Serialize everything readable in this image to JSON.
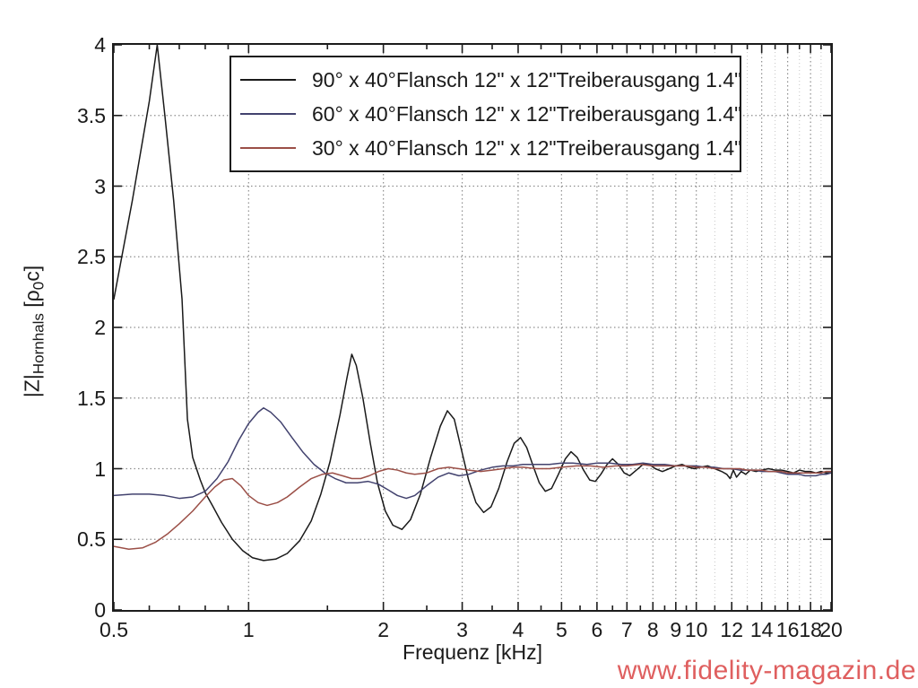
{
  "chart_data": {
    "type": "line",
    "x_scale": "log",
    "xlim": [
      0.5,
      20
    ],
    "ylim": [
      0,
      4
    ],
    "grid": "dotted",
    "legend_position": "top-center-inside",
    "xlabel": "Frequenz [kHz]",
    "ylabel": "|Z|Hornhals [p0c]",
    "x_tick_labels": [
      {
        "value": 0.5,
        "label": "0.5"
      },
      {
        "value": 1,
        "label": "1"
      },
      {
        "value": 2,
        "label": "2"
      },
      {
        "value": 3,
        "label": "3"
      },
      {
        "value": 4,
        "label": "4"
      },
      {
        "value": 5,
        "label": "5"
      },
      {
        "value": 6,
        "label": "6"
      },
      {
        "value": 7,
        "label": "7"
      },
      {
        "value": 8,
        "label": "8"
      },
      {
        "value": 9,
        "label": "9"
      },
      {
        "value": 10,
        "label": "10"
      },
      {
        "value": 12,
        "label": "12"
      },
      {
        "value": 14,
        "label": "14"
      },
      {
        "value": 16,
        "label": "16"
      },
      {
        "value": 18,
        "label": "18"
      },
      {
        "value": 20,
        "label": "20"
      }
    ],
    "x_minor_ticks": [
      0.6,
      0.7,
      0.8,
      0.9,
      1.5,
      2.5,
      3.5,
      4.5,
      5.5,
      6.5,
      7.5,
      8.5,
      9.5,
      11,
      13,
      15,
      17,
      19
    ],
    "x_minor_gridlines": [
      11,
      13,
      15,
      17,
      19
    ],
    "y_ticks": [
      {
        "value": 0,
        "label": "0"
      },
      {
        "value": 0.5,
        "label": "0.5"
      },
      {
        "value": 1,
        "label": "1"
      },
      {
        "value": 1.5,
        "label": "1.5"
      },
      {
        "value": 2,
        "label": "2"
      },
      {
        "value": 2.5,
        "label": "2.5"
      },
      {
        "value": 3,
        "label": "3"
      },
      {
        "value": 3.5,
        "label": "3.5"
      },
      {
        "value": 4,
        "label": "4"
      }
    ],
    "series": [
      {
        "name": "90° x 40°  Flansch 12\" x 12\"  Treiberausgang 1.4\"",
        "color": "#1a1a1a",
        "points": [
          [
            0.5,
            2.2
          ],
          [
            0.55,
            2.9
          ],
          [
            0.6,
            3.6
          ],
          [
            0.625,
            4.0
          ],
          [
            0.65,
            3.5
          ],
          [
            0.68,
            2.9
          ],
          [
            0.71,
            2.2
          ],
          [
            0.73,
            1.35
          ],
          [
            0.75,
            1.08
          ],
          [
            0.78,
            0.92
          ],
          [
            0.8,
            0.83
          ],
          [
            0.83,
            0.74
          ],
          [
            0.87,
            0.62
          ],
          [
            0.92,
            0.5
          ],
          [
            0.97,
            0.42
          ],
          [
            1.02,
            0.37
          ],
          [
            1.08,
            0.35
          ],
          [
            1.15,
            0.36
          ],
          [
            1.22,
            0.4
          ],
          [
            1.3,
            0.49
          ],
          [
            1.38,
            0.63
          ],
          [
            1.45,
            0.82
          ],
          [
            1.52,
            1.05
          ],
          [
            1.6,
            1.38
          ],
          [
            1.66,
            1.65
          ],
          [
            1.7,
            1.81
          ],
          [
            1.74,
            1.73
          ],
          [
            1.8,
            1.5
          ],
          [
            1.87,
            1.18
          ],
          [
            1.94,
            0.9
          ],
          [
            2.02,
            0.7
          ],
          [
            2.1,
            0.6
          ],
          [
            2.2,
            0.57
          ],
          [
            2.3,
            0.64
          ],
          [
            2.42,
            0.82
          ],
          [
            2.55,
            1.08
          ],
          [
            2.68,
            1.3
          ],
          [
            2.78,
            1.41
          ],
          [
            2.88,
            1.35
          ],
          [
            2.98,
            1.15
          ],
          [
            3.1,
            0.92
          ],
          [
            3.22,
            0.76
          ],
          [
            3.35,
            0.69
          ],
          [
            3.48,
            0.73
          ],
          [
            3.62,
            0.86
          ],
          [
            3.78,
            1.05
          ],
          [
            3.92,
            1.18
          ],
          [
            4.05,
            1.22
          ],
          [
            4.18,
            1.15
          ],
          [
            4.32,
            1.02
          ],
          [
            4.46,
            0.9
          ],
          [
            4.6,
            0.84
          ],
          [
            4.75,
            0.86
          ],
          [
            4.92,
            0.96
          ],
          [
            5.1,
            1.07
          ],
          [
            5.25,
            1.12
          ],
          [
            5.42,
            1.08
          ],
          [
            5.6,
            0.99
          ],
          [
            5.78,
            0.92
          ],
          [
            5.95,
            0.91
          ],
          [
            6.12,
            0.96
          ],
          [
            6.32,
            1.03
          ],
          [
            6.5,
            1.07
          ],
          [
            6.7,
            1.03
          ],
          [
            6.9,
            0.97
          ],
          [
            7.1,
            0.95
          ],
          [
            7.35,
            0.99
          ],
          [
            7.6,
            1.03
          ],
          [
            7.85,
            1.03
          ],
          [
            8.1,
            1.0
          ],
          [
            8.4,
            0.98
          ],
          [
            8.7,
            1.0
          ],
          [
            9.0,
            1.02
          ],
          [
            9.3,
            1.03
          ],
          [
            9.6,
            1.01
          ],
          [
            9.9,
            1.0
          ],
          [
            10.2,
            1.01
          ],
          [
            10.6,
            1.02
          ],
          [
            11.0,
            1.0
          ],
          [
            11.4,
            0.98
          ],
          [
            11.7,
            0.96
          ],
          [
            11.9,
            0.93
          ],
          [
            12.1,
            0.99
          ],
          [
            12.3,
            0.94
          ],
          [
            12.6,
            0.98
          ],
          [
            12.9,
            0.96
          ],
          [
            13.2,
            0.99
          ],
          [
            13.6,
            0.98
          ],
          [
            14.0,
            0.99
          ],
          [
            14.5,
            1.0
          ],
          [
            15.0,
            0.99
          ],
          [
            15.5,
            0.99
          ],
          [
            16.0,
            0.98
          ],
          [
            16.5,
            0.97
          ],
          [
            17.0,
            0.99
          ],
          [
            17.5,
            0.98
          ],
          [
            18.0,
            0.98
          ],
          [
            18.5,
            0.97
          ],
          [
            19.0,
            0.98
          ],
          [
            19.5,
            0.97
          ],
          [
            20,
            0.97
          ]
        ]
      },
      {
        "name": "60° x 40°  Flansch 12\" x 12\"  Treiberausgang 1.4\"",
        "color": "#42426e",
        "points": [
          [
            0.5,
            0.81
          ],
          [
            0.55,
            0.82
          ],
          [
            0.6,
            0.82
          ],
          [
            0.65,
            0.81
          ],
          [
            0.7,
            0.79
          ],
          [
            0.75,
            0.8
          ],
          [
            0.8,
            0.84
          ],
          [
            0.85,
            0.93
          ],
          [
            0.9,
            1.05
          ],
          [
            0.95,
            1.2
          ],
          [
            1.0,
            1.32
          ],
          [
            1.05,
            1.4
          ],
          [
            1.08,
            1.43
          ],
          [
            1.12,
            1.4
          ],
          [
            1.18,
            1.33
          ],
          [
            1.25,
            1.22
          ],
          [
            1.32,
            1.12
          ],
          [
            1.4,
            1.03
          ],
          [
            1.48,
            0.97
          ],
          [
            1.56,
            0.93
          ],
          [
            1.65,
            0.9
          ],
          [
            1.75,
            0.9
          ],
          [
            1.85,
            0.91
          ],
          [
            1.95,
            0.89
          ],
          [
            2.05,
            0.85
          ],
          [
            2.15,
            0.81
          ],
          [
            2.25,
            0.79
          ],
          [
            2.35,
            0.81
          ],
          [
            2.5,
            0.88
          ],
          [
            2.65,
            0.94
          ],
          [
            2.8,
            0.97
          ],
          [
            2.95,
            0.95
          ],
          [
            3.1,
            0.96
          ],
          [
            3.3,
            0.99
          ],
          [
            3.5,
            1.01
          ],
          [
            3.7,
            1.02
          ],
          [
            3.9,
            1.02
          ],
          [
            4.1,
            1.03
          ],
          [
            4.4,
            1.03
          ],
          [
            4.7,
            1.03
          ],
          [
            5.0,
            1.04
          ],
          [
            5.3,
            1.04
          ],
          [
            5.7,
            1.03
          ],
          [
            6.0,
            1.04
          ],
          [
            6.4,
            1.04
          ],
          [
            6.8,
            1.03
          ],
          [
            7.2,
            1.03
          ],
          [
            7.6,
            1.04
          ],
          [
            8.0,
            1.03
          ],
          [
            8.5,
            1.03
          ],
          [
            9.0,
            1.02
          ],
          [
            9.5,
            1.02
          ],
          [
            10.0,
            1.02
          ],
          [
            10.5,
            1.01
          ],
          [
            11.0,
            1.01
          ],
          [
            11.5,
            1.0
          ],
          [
            12.0,
            1.0
          ],
          [
            12.5,
            0.99
          ],
          [
            13.0,
            0.99
          ],
          [
            13.5,
            0.99
          ],
          [
            14.0,
            0.98
          ],
          [
            14.5,
            0.98
          ],
          [
            15.0,
            0.98
          ],
          [
            15.5,
            0.97
          ],
          [
            16.0,
            0.96
          ],
          [
            16.5,
            0.96
          ],
          [
            17.0,
            0.96
          ],
          [
            17.5,
            0.95
          ],
          [
            18.0,
            0.95
          ],
          [
            18.5,
            0.95
          ],
          [
            19.0,
            0.96
          ],
          [
            19.5,
            0.96
          ],
          [
            20,
            0.97
          ]
        ]
      },
      {
        "name": "30° x 40°  Flansch 12\" x 12\"  Treiberausgang 1.4\"",
        "color": "#9b4f47",
        "points": [
          [
            0.5,
            0.45
          ],
          [
            0.54,
            0.43
          ],
          [
            0.58,
            0.44
          ],
          [
            0.62,
            0.48
          ],
          [
            0.66,
            0.54
          ],
          [
            0.7,
            0.61
          ],
          [
            0.75,
            0.7
          ],
          [
            0.8,
            0.8
          ],
          [
            0.84,
            0.87
          ],
          [
            0.88,
            0.92
          ],
          [
            0.92,
            0.93
          ],
          [
            0.96,
            0.88
          ],
          [
            1.0,
            0.81
          ],
          [
            1.05,
            0.76
          ],
          [
            1.1,
            0.74
          ],
          [
            1.16,
            0.76
          ],
          [
            1.22,
            0.8
          ],
          [
            1.3,
            0.87
          ],
          [
            1.38,
            0.93
          ],
          [
            1.46,
            0.96
          ],
          [
            1.54,
            0.97
          ],
          [
            1.62,
            0.95
          ],
          [
            1.7,
            0.93
          ],
          [
            1.78,
            0.93
          ],
          [
            1.86,
            0.95
          ],
          [
            1.95,
            0.98
          ],
          [
            2.05,
            1.0
          ],
          [
            2.15,
            0.99
          ],
          [
            2.25,
            0.97
          ],
          [
            2.35,
            0.96
          ],
          [
            2.5,
            0.97
          ],
          [
            2.65,
            1.0
          ],
          [
            2.8,
            1.01
          ],
          [
            2.95,
            1.0
          ],
          [
            3.1,
            0.99
          ],
          [
            3.3,
            0.98
          ],
          [
            3.5,
            0.99
          ],
          [
            3.7,
            1.0
          ],
          [
            3.9,
            1.01
          ],
          [
            4.1,
            1.01
          ],
          [
            4.4,
            1.0
          ],
          [
            4.7,
            1.0
          ],
          [
            5.0,
            1.01
          ],
          [
            5.4,
            1.02
          ],
          [
            5.8,
            1.02
          ],
          [
            6.2,
            1.01
          ],
          [
            6.6,
            1.02
          ],
          [
            7.0,
            1.02
          ],
          [
            7.5,
            1.03
          ],
          [
            8.0,
            1.02
          ],
          [
            8.5,
            1.02
          ],
          [
            9.0,
            1.02
          ],
          [
            9.5,
            1.02
          ],
          [
            10.0,
            1.01
          ],
          [
            10.5,
            1.01
          ],
          [
            11.0,
            1.0
          ],
          [
            11.5,
            1.0
          ],
          [
            12.0,
            1.0
          ],
          [
            12.5,
            1.0
          ],
          [
            13.0,
            0.99
          ],
          [
            13.5,
            0.99
          ],
          [
            14.0,
            0.99
          ],
          [
            14.5,
            0.98
          ],
          [
            15.0,
            0.98
          ],
          [
            15.5,
            0.98
          ],
          [
            16.0,
            0.97
          ],
          [
            16.5,
            0.97
          ],
          [
            17.0,
            0.97
          ],
          [
            17.5,
            0.97
          ],
          [
            18.0,
            0.97
          ],
          [
            18.5,
            0.97
          ],
          [
            19.0,
            0.97
          ],
          [
            19.5,
            0.98
          ],
          [
            20,
            0.98
          ]
        ]
      }
    ]
  },
  "axis_titles": {
    "x": "Frequenz [kHz]"
  },
  "ylabel_parts": {
    "zmod": "|Z|",
    "sub1": "Hornhals",
    "bracket": " [",
    "rho": "ρ",
    "sub2": "0",
    "rest": "c]"
  },
  "legend": {
    "items": [
      {
        "angle": "90° x 40°",
        "flansch": "Flansch 12\" x 12\"",
        "treiber": "Treiberausgang 1.4\""
      },
      {
        "angle": "60° x 40°",
        "flansch": "Flansch 12\" x 12\"",
        "treiber": "Treiberausgang 1.4\""
      },
      {
        "angle": "30° x 40°",
        "flansch": "Flansch 12\" x 12\"",
        "treiber": "Treiberausgang 1.4\""
      }
    ]
  },
  "watermark": {
    "text": "www.fidelity-magazin.de",
    "color": "#df5f5f"
  },
  "grid_colors": {
    "major": "#8f8f8f",
    "minor": "#c6c6c6"
  }
}
